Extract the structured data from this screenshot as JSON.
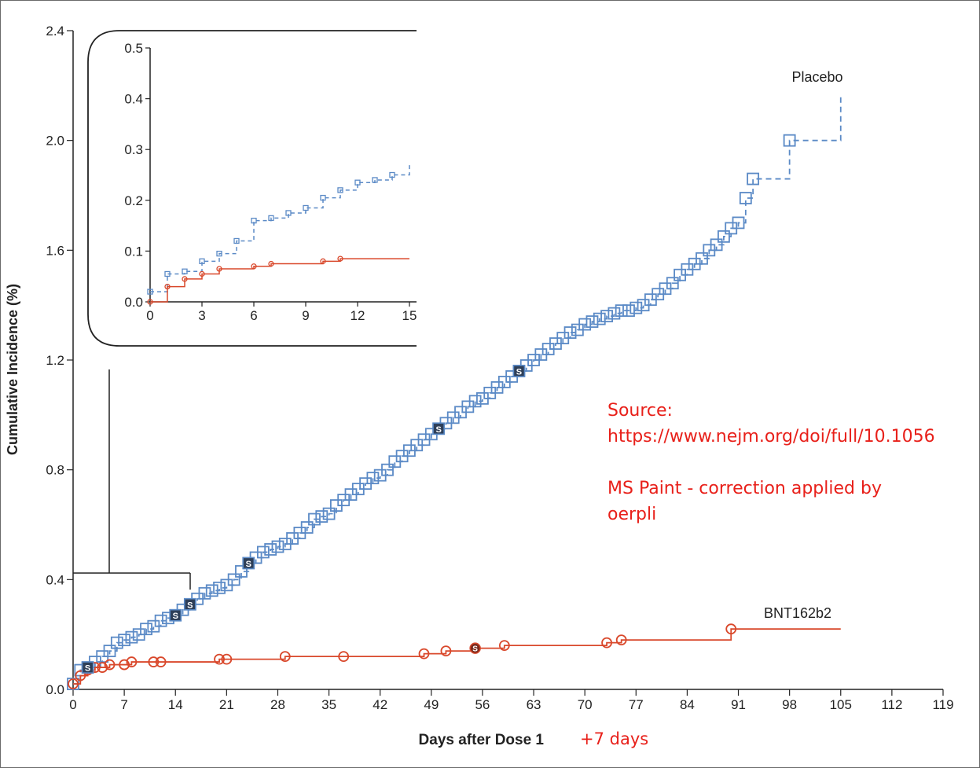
{
  "chart_data": [
    {
      "type": "line",
      "xlabel": "Days after Dose 1",
      "xlabel_correction": "+7 days",
      "ylabel": "Cumulative Incidence (%)",
      "xlim": [
        0,
        119
      ],
      "ylim": [
        0,
        2.4
      ],
      "x_ticks": [
        "0",
        "7",
        "14",
        "21",
        "28",
        "35",
        "42",
        "49",
        "56",
        "63",
        "70",
        "77",
        "84",
        "91",
        "98",
        "105",
        "112",
        "119"
      ],
      "y_ticks": [
        "0.0",
        "0.4",
        "0.8",
        "1.2",
        "1.6",
        "2.0",
        "2.4"
      ],
      "grid": false,
      "series": [
        {
          "name": "Placebo",
          "color": "#5b8ac6",
          "marker": "square",
          "line_style": "dashed",
          "x": [
            0,
            1,
            2,
            3,
            4,
            5,
            6,
            7,
            8,
            9,
            10,
            11,
            12,
            13,
            14,
            15,
            16,
            17,
            18,
            19,
            20,
            21,
            22,
            23,
            24,
            25,
            26,
            27,
            28,
            29,
            30,
            31,
            32,
            33,
            34,
            35,
            36,
            37,
            38,
            39,
            40,
            41,
            42,
            43,
            44,
            45,
            46,
            47,
            48,
            49,
            50,
            51,
            52,
            53,
            54,
            55,
            56,
            57,
            58,
            59,
            60,
            61,
            62,
            63,
            64,
            65,
            66,
            67,
            68,
            69,
            70,
            71,
            72,
            73,
            74,
            75,
            76,
            77,
            78,
            79,
            80,
            81,
            82,
            83,
            84,
            85,
            86,
            87,
            88,
            89,
            90,
            91,
            92,
            93,
            98,
            105
          ],
          "y": [
            0.02,
            0.07,
            0.08,
            0.1,
            0.12,
            0.14,
            0.17,
            0.18,
            0.19,
            0.2,
            0.22,
            0.23,
            0.25,
            0.26,
            0.27,
            0.29,
            0.31,
            0.33,
            0.35,
            0.36,
            0.37,
            0.38,
            0.4,
            0.43,
            0.46,
            0.48,
            0.5,
            0.51,
            0.52,
            0.53,
            0.55,
            0.57,
            0.59,
            0.62,
            0.63,
            0.64,
            0.67,
            0.69,
            0.71,
            0.73,
            0.75,
            0.77,
            0.78,
            0.8,
            0.83,
            0.85,
            0.87,
            0.89,
            0.91,
            0.93,
            0.95,
            0.97,
            0.99,
            1.01,
            1.03,
            1.05,
            1.06,
            1.08,
            1.1,
            1.12,
            1.14,
            1.16,
            1.18,
            1.2,
            1.22,
            1.24,
            1.26,
            1.28,
            1.3,
            1.31,
            1.33,
            1.34,
            1.35,
            1.36,
            1.37,
            1.38,
            1.38,
            1.39,
            1.4,
            1.42,
            1.44,
            1.46,
            1.48,
            1.51,
            1.53,
            1.55,
            1.57,
            1.6,
            1.62,
            1.65,
            1.68,
            1.7,
            1.79,
            1.86,
            2.0,
            2.17
          ]
        },
        {
          "name": "BNT162b2",
          "color": "#d9482b",
          "marker": "circle",
          "line_style": "solid",
          "x": [
            0,
            1,
            2,
            3,
            4,
            5,
            7,
            8,
            11,
            12,
            20,
            21,
            29,
            37,
            48,
            51,
            55,
            59,
            73,
            75,
            90,
            105
          ],
          "y": [
            0.02,
            0.05,
            0.07,
            0.08,
            0.08,
            0.09,
            0.09,
            0.1,
            0.1,
            0.1,
            0.11,
            0.11,
            0.12,
            0.12,
            0.13,
            0.14,
            0.15,
            0.16,
            0.17,
            0.18,
            0.22,
            0.22
          ]
        }
      ],
      "labels": {
        "placebo": "Placebo",
        "vaccine": "BNT162b2"
      },
      "annotations": {
        "censor_marker": "S"
      }
    },
    {
      "type": "line",
      "inset": true,
      "xlim": [
        0,
        15
      ],
      "ylim": [
        0,
        0.5
      ],
      "x_ticks": [
        "0",
        "3",
        "6",
        "9",
        "12",
        "15"
      ],
      "y_ticks": [
        "0.0",
        "0.1",
        "0.2",
        "0.3",
        "0.4",
        "0.5"
      ],
      "series": [
        {
          "name": "Placebo",
          "color": "#5b8ac6",
          "line_style": "dashed",
          "x": [
            0,
            1,
            2,
            3,
            4,
            5,
            6,
            7,
            8,
            9,
            10,
            11,
            12,
            13,
            14,
            15
          ],
          "y": [
            0.02,
            0.055,
            0.06,
            0.08,
            0.095,
            0.12,
            0.16,
            0.165,
            0.175,
            0.185,
            0.205,
            0.22,
            0.235,
            0.24,
            0.25,
            0.275
          ]
        },
        {
          "name": "BNT162b2",
          "color": "#d9482b",
          "line_style": "solid",
          "x": [
            0,
            1,
            2,
            3,
            4,
            6,
            7,
            10,
            11,
            15
          ],
          "y": [
            0.0,
            0.03,
            0.045,
            0.055,
            0.065,
            0.07,
            0.075,
            0.08,
            0.085,
            0.085
          ]
        }
      ]
    }
  ],
  "note": {
    "line1": "Source:",
    "line2": "https://www.nejm.org/doi/full/10.1056",
    "line3": "MS Paint - correction applied by",
    "line4": "oerpli"
  }
}
